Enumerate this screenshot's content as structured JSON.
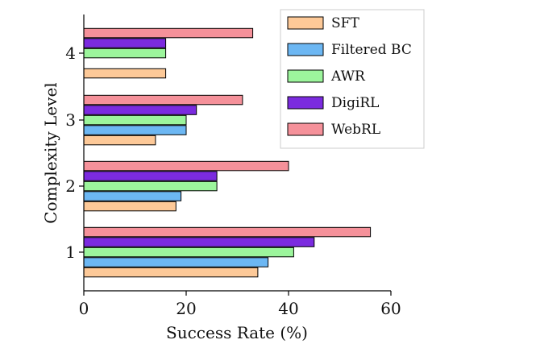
{
  "chart_data": {
    "type": "bar",
    "orientation": "horizontal",
    "xlabel": "Success Rate (%)",
    "ylabel": "Complexity Level",
    "xlim": [
      0,
      60
    ],
    "xticks": [
      "0",
      "20",
      "40",
      "60"
    ],
    "categories": [
      "1",
      "2",
      "3",
      "4"
    ],
    "legend_position": "top-right",
    "grid": false,
    "series": [
      {
        "name": "SFT",
        "color": "#fdc998",
        "values": [
          34,
          18,
          14,
          16
        ]
      },
      {
        "name": "Filtered BC",
        "color": "#6cb7f3",
        "values": [
          36,
          19,
          20,
          null
        ]
      },
      {
        "name": "AWR",
        "color": "#9cf59c",
        "values": [
          41,
          26,
          20,
          16
        ]
      },
      {
        "name": "DigiRL",
        "color": "#7b2bdf",
        "values": [
          45,
          26,
          22,
          16
        ]
      },
      {
        "name": "WebRL",
        "color": "#f5919a",
        "values": [
          56,
          40,
          31,
          33
        ]
      }
    ]
  }
}
